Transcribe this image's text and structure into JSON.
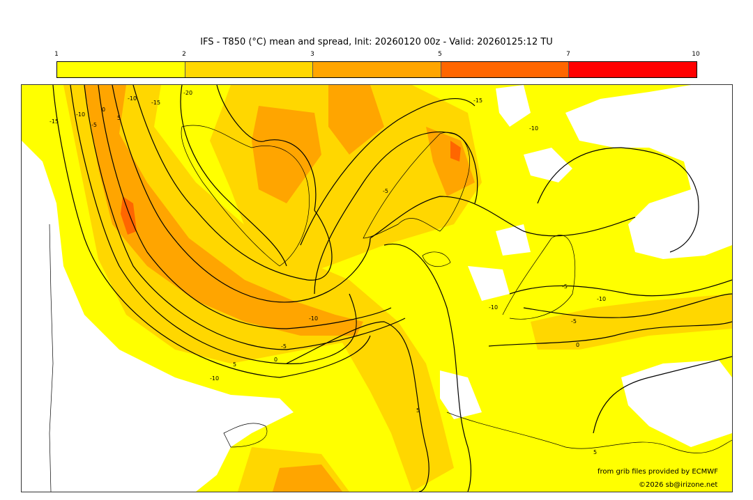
{
  "title": "IFS - T850 (°C) mean and spread, Init: 20260120 00z - Valid: 20260125:12 TU",
  "colorbar": {
    "ticks": [
      "1",
      "2",
      "3",
      "5",
      "7",
      "10"
    ],
    "colors": [
      "#ffff00",
      "#ffd700",
      "#ffa500",
      "#ff6600",
      "#ff0000"
    ]
  },
  "contour_labels": [
    "-15",
    "-10",
    "-5",
    "0",
    "5",
    "-10",
    "-15",
    "-20",
    "-5",
    "-15",
    "-10",
    "-10",
    "-10",
    "-5",
    "0",
    "5",
    "-5",
    "0",
    "5",
    "-10",
    "-10",
    "-5",
    "5"
  ],
  "credits": {
    "source": "from grib files provided by ECMWF",
    "copyright": "©2026 sb@irizone.net"
  }
}
